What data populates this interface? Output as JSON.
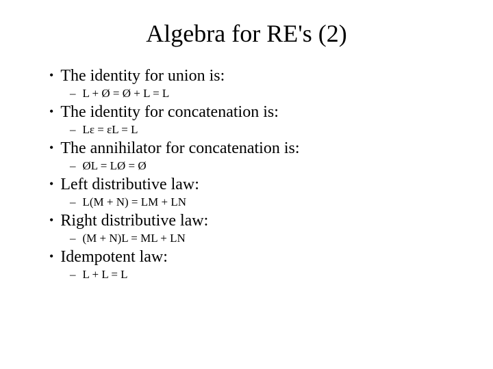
{
  "title": "Algebra for RE's (2)",
  "items": [
    {
      "text": "The identity for union is:",
      "sub": "L + Ø = Ø + L = L"
    },
    {
      "text": "The identity for concatenation is:",
      "sub": "Lε = εL = L"
    },
    {
      "text": "The annihilator for concatenation is:",
      "sub": "ØL = LØ = Ø"
    },
    {
      "text": "Left distributive law:",
      "sub": "L(M + N) = LM + LN"
    },
    {
      "text": "Right distributive law:",
      "sub": "(M + N)L = ML + LN"
    },
    {
      "text": "Idempotent law:",
      "sub": "L + L = L"
    }
  ],
  "colors": {
    "background": "#ffffff",
    "text": "#000000"
  },
  "typography": {
    "title_fontsize": 36,
    "bullet_fontsize": 24,
    "sub_fontsize": 17,
    "font_family": "Times New Roman"
  }
}
